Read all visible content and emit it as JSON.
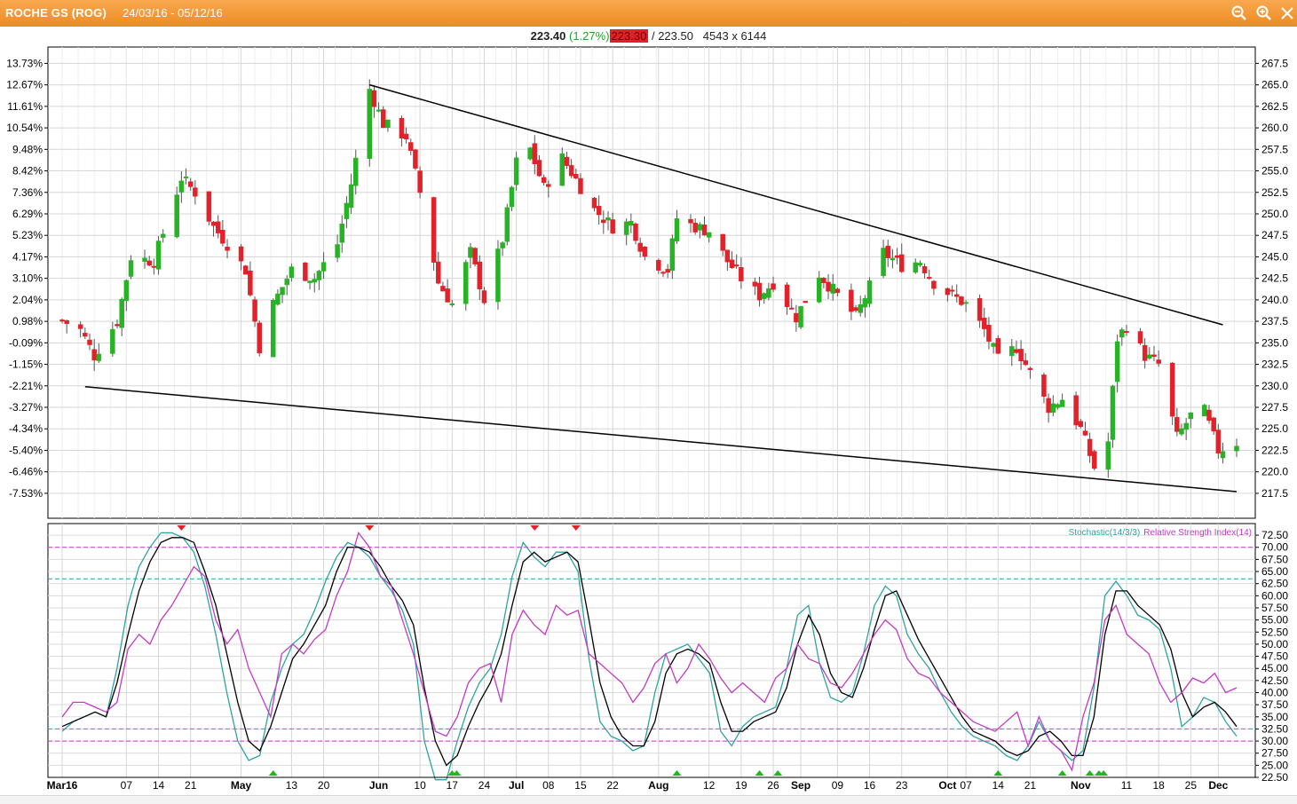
{
  "window": {
    "symbol_title": "ROCHE GS (ROG)",
    "date_range": "24/03/16 - 05/12/16",
    "icons": [
      "zoom-out-icon",
      "zoom-in-icon",
      "close-icon"
    ]
  },
  "quote": {
    "last": "223.40",
    "change": "(1.27%)",
    "bid": "223.30",
    "separator": "/",
    "ask": "223.50",
    "size": "4543 x 6144"
  },
  "colors": {
    "title_bar": "#f0912b",
    "candle_up": "#27b325",
    "candle_down": "#e2222a",
    "stochastic_k": "#2fa3a3",
    "stochastic_d": "#000000",
    "rsi": "#c23bc2"
  },
  "chart_data": [
    {
      "type": "candlestick",
      "y_right_ticks": [
        "267.5",
        "265.0",
        "262.5",
        "260.0",
        "257.5",
        "255.0",
        "252.5",
        "250.0",
        "247.5",
        "245.0",
        "242.5",
        "240.0",
        "237.5",
        "235.0",
        "232.5",
        "230.0",
        "227.5",
        "225.0",
        "222.5",
        "220.0",
        "217.5"
      ],
      "y_left_ticks": [
        "13.73%",
        "12.67%",
        "11.61%",
        "10.54%",
        "9.48%",
        "8.42%",
        "7.36%",
        "6.29%",
        "5.23%",
        "4.17%",
        "3.10%",
        "2.04%",
        "0.98%",
        "-0.09%",
        "-1.15%",
        "-2.21%",
        "-3.27%",
        "-4.34%",
        "-5.40%",
        "-6.46%",
        "-7.53%"
      ],
      "ylim": [
        214.6,
        269.4
      ],
      "date_start": "24/03/16",
      "date_end": "05/12/16",
      "trendlines": [
        {
          "name": "upper",
          "from": [
            "30/05/16",
            265.0
          ],
          "to": [
            "02/12/16",
            237.1
          ]
        },
        {
          "name": "lower",
          "from": [
            "29/03/16",
            229.9
          ],
          "to": [
            "05/12/16",
            217.7
          ]
        }
      ],
      "anchors": [
        [
          "24/03/16",
          237.6
        ],
        [
          "28/03/16",
          236.5
        ],
        [
          "31/03/16",
          233.5
        ],
        [
          "05/04/16",
          237.5
        ],
        [
          "08/04/16",
          245.0
        ],
        [
          "13/04/16",
          244.5
        ],
        [
          "19/04/16",
          254.2
        ],
        [
          "22/04/16",
          252.5
        ],
        [
          "26/04/16",
          248.5
        ],
        [
          "29/04/16",
          246.5
        ],
        [
          "03/05/16",
          243.5
        ],
        [
          "06/05/16",
          234.5
        ],
        [
          "09/05/16",
          239.5
        ],
        [
          "13/05/16",
          243.5
        ],
        [
          "18/05/16",
          242.5
        ],
        [
          "23/05/16",
          246.5
        ],
        [
          "26/05/16",
          253.5
        ],
        [
          "30/05/16",
          264.5
        ],
        [
          "02/06/16",
          260.5
        ],
        [
          "07/06/16",
          259.0
        ],
        [
          "10/06/16",
          252.5
        ],
        [
          "14/06/16",
          242.0
        ],
        [
          "17/06/16",
          239.5
        ],
        [
          "21/06/16",
          245.5
        ],
        [
          "24/06/16",
          240.0
        ],
        [
          "28/06/16",
          247.0
        ],
        [
          "01/07/16",
          256.0
        ],
        [
          "04/07/16",
          257.5
        ],
        [
          "07/07/16",
          253.0
        ],
        [
          "11/07/16",
          256.5
        ],
        [
          "14/07/16",
          254.0
        ],
        [
          "18/07/16",
          250.5
        ],
        [
          "22/07/16",
          248.5
        ],
        [
          "26/07/16",
          249.0
        ],
        [
          "29/07/16",
          245.0
        ],
        [
          "03/08/16",
          243.5
        ],
        [
          "05/08/16",
          249.5
        ],
        [
          "09/08/16",
          248.5
        ],
        [
          "12/08/16",
          248.0
        ],
        [
          "16/08/16",
          244.5
        ],
        [
          "19/08/16",
          242.5
        ],
        [
          "23/08/16",
          240.5
        ],
        [
          "26/08/16",
          242.0
        ],
        [
          "31/08/16",
          238.0
        ],
        [
          "05/09/16",
          243.0
        ],
        [
          "09/09/16",
          240.5
        ],
        [
          "13/09/16",
          238.0
        ],
        [
          "16/09/16",
          241.5
        ],
        [
          "19/09/16",
          245.5
        ],
        [
          "23/09/16",
          244.0
        ],
        [
          "27/09/16",
          244.5
        ],
        [
          "30/09/16",
          242.0
        ],
        [
          "04/10/16",
          240.5
        ],
        [
          "07/10/16",
          239.5
        ],
        [
          "11/10/16",
          236.5
        ],
        [
          "14/10/16",
          233.0
        ],
        [
          "18/10/16",
          234.5
        ],
        [
          "21/10/16",
          231.5
        ],
        [
          "25/10/16",
          227.5
        ],
        [
          "28/10/16",
          228.5
        ],
        [
          "01/11/16",
          225.0
        ],
        [
          "04/11/16",
          220.5
        ],
        [
          "07/11/16",
          223.5
        ],
        [
          "09/11/16",
          235.5
        ],
        [
          "11/11/16",
          237.0
        ],
        [
          "15/11/16",
          233.5
        ],
        [
          "18/11/16",
          232.5
        ],
        [
          "22/11/16",
          224.0
        ],
        [
          "25/11/16",
          226.5
        ],
        [
          "28/11/16",
          227.0
        ],
        [
          "01/12/16",
          222.5
        ],
        [
          "05/12/16",
          223.4
        ]
      ],
      "grid": true
    },
    {
      "type": "line",
      "legend": {
        "stochastic": "Stochastic(14/3/3)",
        "rsi": "Relative Strength Index(14)"
      },
      "y_ticks": [
        "72.50",
        "70.00",
        "67.50",
        "65.00",
        "62.50",
        "60.00",
        "57.50",
        "55.00",
        "52.50",
        "50.00",
        "47.50",
        "45.00",
        "42.50",
        "40.00",
        "37.50",
        "35.00",
        "32.50",
        "30.00",
        "27.50",
        "25.00",
        "22.50"
      ],
      "ylim": [
        22.5,
        74.9
      ],
      "reference_lines": [
        {
          "value": 70.0,
          "color": "#c23bc2"
        },
        {
          "value": 63.5,
          "color": "#2fa3a3"
        },
        {
          "value": 32.5,
          "color": "#2fa3a3"
        },
        {
          "value": 30.0,
          "color": "#c23bc2"
        }
      ],
      "series": [
        {
          "name": "Stochastic(14/3/3)",
          "key": "stoch_k",
          "values": [
            32,
            34,
            35,
            36,
            35,
            45,
            58,
            66,
            70,
            73,
            73,
            72,
            69,
            62,
            52,
            40,
            30,
            26,
            27,
            38,
            45,
            50,
            52,
            57,
            63,
            68,
            71,
            70,
            68,
            64,
            61,
            57,
            50,
            30,
            22,
            22,
            30,
            37,
            42,
            45,
            52,
            64,
            71,
            68,
            66,
            69,
            69,
            65,
            47,
            34,
            31,
            30,
            28,
            29,
            40,
            48,
            49,
            50,
            47,
            44,
            32,
            29,
            33,
            35,
            36,
            37,
            45,
            56,
            58,
            46,
            39,
            38,
            40,
            48,
            58,
            62,
            60,
            52,
            48,
            45,
            40,
            36,
            33,
            31,
            30,
            29,
            27,
            26,
            29,
            34,
            30,
            28,
            26,
            28,
            41,
            60,
            63,
            60,
            56,
            55,
            53,
            45,
            33,
            35,
            39,
            38,
            34,
            31
          ]
        },
        {
          "name": "",
          "key": "stoch_d",
          "values": [
            33,
            34,
            35,
            36,
            35,
            42,
            52,
            61,
            67,
            71,
            72,
            72,
            71,
            65,
            58,
            48,
            38,
            30,
            28,
            33,
            40,
            47,
            50,
            54,
            58,
            65,
            70,
            70,
            69,
            66,
            62,
            59,
            54,
            41,
            30,
            25,
            27,
            33,
            38,
            42,
            48,
            58,
            67,
            69,
            67,
            68,
            69,
            67,
            55,
            42,
            35,
            31,
            29,
            29,
            34,
            44,
            48,
            49,
            48,
            46,
            38,
            32,
            32,
            34,
            35,
            36,
            41,
            50,
            56,
            52,
            44,
            40,
            39,
            45,
            53,
            60,
            61,
            56,
            51,
            47,
            43,
            39,
            35,
            32,
            31,
            30,
            28,
            27,
            28,
            31,
            32,
            30,
            27,
            27,
            35,
            52,
            61,
            61,
            58,
            56,
            54,
            49,
            40,
            35,
            37,
            38,
            36,
            33
          ]
        },
        {
          "name": "Relative Strength Index(14)",
          "key": "rsi",
          "values": [
            35,
            38,
            38,
            37,
            36,
            38,
            49,
            52,
            50,
            55,
            58,
            62,
            66,
            64,
            55,
            50,
            53,
            45,
            40,
            35,
            48,
            50,
            48,
            51,
            53,
            60,
            65,
            73,
            70,
            64,
            62,
            55,
            48,
            40,
            32,
            31,
            35,
            42,
            45,
            46,
            38,
            52,
            57,
            54,
            52,
            58,
            56,
            57,
            48,
            46,
            44,
            42,
            38,
            41,
            46,
            48,
            42,
            45,
            50,
            47,
            43,
            40,
            42,
            40,
            38,
            43,
            45,
            50,
            47,
            46,
            42,
            41,
            44,
            48,
            52,
            55,
            53,
            47,
            44,
            43,
            40,
            38,
            36,
            34,
            33,
            32,
            34,
            36,
            29,
            35,
            30,
            28,
            24,
            35,
            42,
            55,
            58,
            52,
            50,
            48,
            42,
            38,
            40,
            43,
            42,
            44,
            40,
            41
          ]
        }
      ],
      "markers_top_dates": [
        "19/04/16",
        "30/05/16",
        "05/07/16",
        "14/07/16"
      ],
      "markers_bottom_dates": [
        "09/05/16",
        "17/06/16",
        "18/06/16",
        "05/08/16",
        "23/08/16",
        "27/08/16",
        "14/10/16",
        "28/10/16",
        "03/11/16",
        "05/11/16",
        "06/11/16"
      ]
    }
  ],
  "x_axis": {
    "ticks": [
      {
        "label": "Mar16",
        "date": "24/03/16"
      },
      {
        "label": "07",
        "date": "07/04/16"
      },
      {
        "label": "14",
        "date": "14/04/16"
      },
      {
        "label": "21",
        "date": "21/04/16"
      },
      {
        "label": "May",
        "date": "02/05/16"
      },
      {
        "label": "13",
        "date": "13/05/16"
      },
      {
        "label": "20",
        "date": "20/05/16"
      },
      {
        "label": "Jun",
        "date": "01/06/16"
      },
      {
        "label": "10",
        "date": "10/06/16"
      },
      {
        "label": "17",
        "date": "17/06/16"
      },
      {
        "label": "24",
        "date": "24/06/16"
      },
      {
        "label": "Jul",
        "date": "01/07/16"
      },
      {
        "label": "08",
        "date": "08/07/16"
      },
      {
        "label": "15",
        "date": "15/07/16"
      },
      {
        "label": "22",
        "date": "22/07/16"
      },
      {
        "label": "Aug",
        "date": "01/08/16"
      },
      {
        "label": "12",
        "date": "12/08/16"
      },
      {
        "label": "19",
        "date": "19/08/16"
      },
      {
        "label": "26",
        "date": "26/08/16"
      },
      {
        "label": "Sep",
        "date": "01/09/16"
      },
      {
        "label": "09",
        "date": "09/09/16"
      },
      {
        "label": "16",
        "date": "16/09/16"
      },
      {
        "label": "23",
        "date": "23/09/16"
      },
      {
        "label": "Oct",
        "date": "03/10/16"
      },
      {
        "label": "07",
        "date": "07/10/16"
      },
      {
        "label": "14",
        "date": "14/10/16"
      },
      {
        "label": "21",
        "date": "21/10/16"
      },
      {
        "label": "Nov",
        "date": "01/11/16"
      },
      {
        "label": "11",
        "date": "11/11/16"
      },
      {
        "label": "18",
        "date": "18/11/16"
      },
      {
        "label": "25",
        "date": "25/11/16"
      },
      {
        "label": "Dec",
        "date": "01/12/16"
      }
    ]
  }
}
